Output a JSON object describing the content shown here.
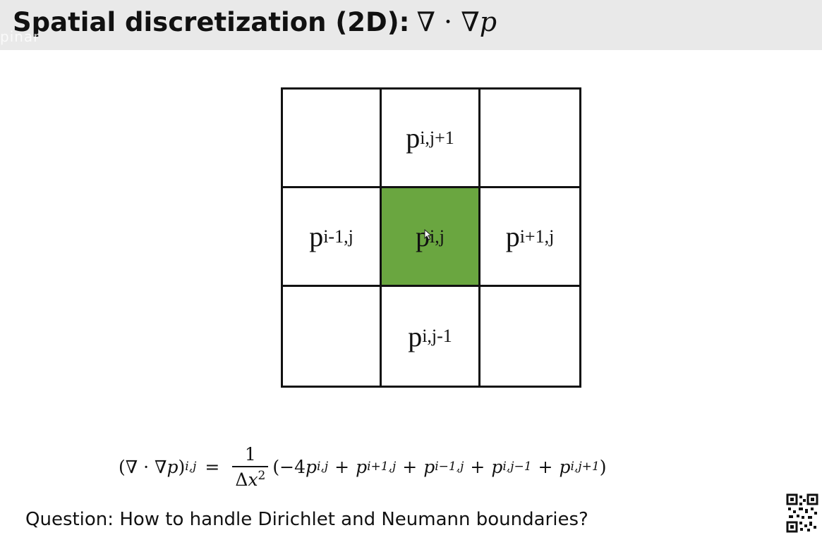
{
  "title": {
    "text": "Spatial discretization (2D):",
    "math_ops": "∇ · ∇",
    "math_var": "p"
  },
  "watermark": "pinar",
  "grid": {
    "cells": [
      {
        "base": "",
        "sub": ""
      },
      {
        "base": "p",
        "sub": "i,j+1"
      },
      {
        "base": "",
        "sub": ""
      },
      {
        "base": "p",
        "sub": "i-1,j"
      },
      {
        "base": "p",
        "sub": "i,j"
      },
      {
        "base": "p",
        "sub": "i+1,j"
      },
      {
        "base": "",
        "sub": ""
      },
      {
        "base": "p",
        "sub": "i,j-1"
      },
      {
        "base": "",
        "sub": ""
      }
    ],
    "highlight_color": "#6aa640"
  },
  "formula": {
    "lhs_ops": "(∇ · ∇",
    "lhs_var": "p",
    "lhs_close": ")",
    "lhs_sub": "i,j",
    "equals": "=",
    "frac_num": "1",
    "frac_den_delta": "Δ",
    "frac_den_var": "x",
    "frac_den_exp": "2",
    "open": "(−4",
    "t1_sub": "i,j",
    "plus": "+",
    "t2_sub": "i+1,j",
    "t3_sub": "i−1,j",
    "t4_sub": "i,j−1",
    "t5_sub": "i,j+1",
    "close": ")"
  },
  "question": "Question: How to handle Dirichlet and Neumann boundaries?"
}
